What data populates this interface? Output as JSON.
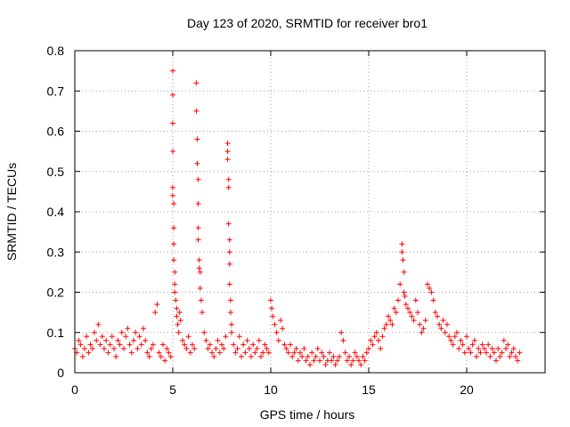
{
  "chart_data": {
    "type": "scatter",
    "title": "Day 123 of 2020, SRMTID for receiver bro1",
    "xlabel": "GPS time / hours",
    "ylabel": "SRMTID / TECUs",
    "xlim": [
      0,
      24
    ],
    "ylim": [
      0,
      0.8
    ],
    "xticks": [
      0,
      5,
      10,
      15,
      20
    ],
    "xtick_labels": [
      "0",
      "5",
      "10",
      "15",
      "20"
    ],
    "yticks": [
      0,
      0.1,
      0.2,
      0.3,
      0.4,
      0.5,
      0.6,
      0.7,
      0.8
    ],
    "ytick_labels": [
      "0",
      "0.1",
      "0.2",
      "0.3",
      "0.4",
      "0.5",
      "0.6",
      "0.7",
      "0.8"
    ],
    "grid": true,
    "marker": "+",
    "color": "#ff0000",
    "series": [
      {
        "name": "SRMTID",
        "x": [
          0.0,
          0.1,
          0.2,
          0.3,
          0.4,
          0.5,
          0.6,
          0.7,
          0.8,
          0.9,
          1.0,
          1.1,
          1.2,
          1.3,
          1.4,
          1.5,
          1.6,
          1.7,
          1.8,
          1.9,
          2.0,
          2.1,
          2.2,
          2.3,
          2.4,
          2.5,
          2.6,
          2.7,
          2.8,
          2.9,
          3.0,
          3.1,
          3.2,
          3.3,
          3.4,
          3.5,
          3.6,
          3.7,
          3.8,
          3.9,
          4.0,
          4.1,
          4.2,
          4.3,
          4.4,
          4.5,
          4.6,
          4.7,
          4.8,
          4.9,
          5.0,
          5.0,
          5.0,
          5.0,
          5.0,
          5.0,
          5.05,
          5.05,
          5.05,
          5.05,
          5.1,
          5.1,
          5.1,
          5.15,
          5.2,
          5.2,
          5.25,
          5.3,
          5.35,
          5.4,
          5.5,
          5.6,
          5.7,
          5.8,
          5.9,
          6.0,
          6.1,
          6.2,
          6.2,
          6.25,
          6.25,
          6.3,
          6.3,
          6.3,
          6.3,
          6.35,
          6.35,
          6.4,
          6.4,
          6.45,
          6.5,
          6.6,
          6.7,
          6.8,
          6.9,
          7.0,
          7.1,
          7.2,
          7.3,
          7.4,
          7.5,
          7.6,
          7.7,
          7.8,
          7.8,
          7.8,
          7.85,
          7.85,
          7.85,
          7.9,
          7.9,
          7.9,
          7.9,
          7.95,
          7.95,
          8.0,
          8.0,
          8.1,
          8.2,
          8.3,
          8.4,
          8.5,
          8.6,
          8.7,
          8.8,
          8.9,
          9.0,
          9.1,
          9.2,
          9.3,
          9.4,
          9.5,
          9.6,
          9.7,
          9.8,
          9.9,
          10.0,
          10.05,
          10.1,
          10.2,
          10.3,
          10.4,
          10.5,
          10.6,
          10.7,
          10.8,
          10.9,
          11.0,
          11.1,
          11.2,
          11.3,
          11.4,
          11.5,
          11.6,
          11.7,
          11.8,
          11.9,
          12.0,
          12.1,
          12.2,
          12.3,
          12.4,
          12.5,
          12.6,
          12.7,
          12.8,
          12.9,
          13.0,
          13.1,
          13.2,
          13.3,
          13.4,
          13.5,
          13.6,
          13.7,
          13.8,
          13.9,
          14.0,
          14.1,
          14.2,
          14.3,
          14.4,
          14.5,
          14.6,
          14.7,
          14.8,
          14.9,
          15.0,
          15.1,
          15.2,
          15.3,
          15.4,
          15.5,
          15.6,
          15.7,
          15.8,
          15.9,
          16.0,
          16.1,
          16.2,
          16.3,
          16.4,
          16.5,
          16.6,
          16.7,
          16.7,
          16.75,
          16.8,
          16.8,
          16.85,
          16.9,
          17.0,
          17.1,
          17.2,
          17.3,
          17.4,
          17.5,
          17.6,
          17.7,
          17.8,
          17.9,
          18.0,
          18.1,
          18.2,
          18.3,
          18.4,
          18.5,
          18.6,
          18.7,
          18.8,
          18.9,
          19.0,
          19.1,
          19.2,
          19.3,
          19.4,
          19.5,
          19.6,
          19.7,
          19.8,
          19.9,
          20.0,
          20.1,
          20.2,
          20.3,
          20.4,
          20.5,
          20.6,
          20.7,
          20.8,
          20.9,
          21.0,
          21.1,
          21.2,
          21.3,
          21.4,
          21.5,
          21.6,
          21.7,
          21.8,
          21.9,
          22.0,
          22.1,
          22.2,
          22.3,
          22.4,
          22.5,
          22.6,
          22.7
        ],
        "y": [
          0.06,
          0.05,
          0.08,
          0.07,
          0.04,
          0.06,
          0.09,
          0.05,
          0.07,
          0.06,
          0.1,
          0.08,
          0.12,
          0.07,
          0.09,
          0.06,
          0.08,
          0.05,
          0.07,
          0.09,
          0.06,
          0.04,
          0.08,
          0.07,
          0.1,
          0.06,
          0.09,
          0.11,
          0.07,
          0.05,
          0.08,
          0.1,
          0.06,
          0.09,
          0.07,
          0.11,
          0.08,
          0.05,
          0.04,
          0.06,
          0.07,
          0.15,
          0.17,
          0.05,
          0.04,
          0.07,
          0.03,
          0.06,
          0.05,
          0.04,
          0.75,
          0.69,
          0.62,
          0.55,
          0.46,
          0.44,
          0.42,
          0.36,
          0.32,
          0.28,
          0.25,
          0.22,
          0.2,
          0.18,
          0.16,
          0.14,
          0.12,
          0.1,
          0.15,
          0.13,
          0.08,
          0.07,
          0.06,
          0.09,
          0.05,
          0.07,
          0.06,
          0.72,
          0.65,
          0.58,
          0.52,
          0.48,
          0.42,
          0.36,
          0.33,
          0.28,
          0.26,
          0.25,
          0.21,
          0.18,
          0.15,
          0.1,
          0.08,
          0.06,
          0.07,
          0.05,
          0.04,
          0.06,
          0.08,
          0.05,
          0.07,
          0.06,
          0.09,
          0.57,
          0.55,
          0.53,
          0.48,
          0.46,
          0.37,
          0.33,
          0.3,
          0.27,
          0.22,
          0.18,
          0.15,
          0.12,
          0.1,
          0.07,
          0.05,
          0.06,
          0.09,
          0.04,
          0.07,
          0.05,
          0.08,
          0.06,
          0.04,
          0.07,
          0.05,
          0.06,
          0.08,
          0.04,
          0.05,
          0.07,
          0.06,
          0.05,
          0.18,
          0.16,
          0.14,
          0.12,
          0.1,
          0.08,
          0.13,
          0.11,
          0.07,
          0.06,
          0.05,
          0.07,
          0.04,
          0.05,
          0.06,
          0.03,
          0.05,
          0.04,
          0.06,
          0.03,
          0.04,
          0.02,
          0.05,
          0.03,
          0.04,
          0.06,
          0.03,
          0.05,
          0.04,
          0.02,
          0.03,
          0.05,
          0.03,
          0.04,
          0.02,
          0.03,
          0.04,
          0.1,
          0.08,
          0.05,
          0.03,
          0.04,
          0.02,
          0.03,
          0.05,
          0.04,
          0.03,
          0.02,
          0.04,
          0.03,
          0.05,
          0.06,
          0.08,
          0.07,
          0.09,
          0.1,
          0.08,
          0.06,
          0.09,
          0.11,
          0.12,
          0.14,
          0.13,
          0.12,
          0.16,
          0.15,
          0.18,
          0.22,
          0.32,
          0.3,
          0.28,
          0.25,
          0.2,
          0.19,
          0.17,
          0.16,
          0.15,
          0.14,
          0.13,
          0.18,
          0.15,
          0.12,
          0.1,
          0.11,
          0.13,
          0.22,
          0.21,
          0.2,
          0.18,
          0.15,
          0.14,
          0.12,
          0.11,
          0.13,
          0.1,
          0.12,
          0.09,
          0.08,
          0.07,
          0.09,
          0.1,
          0.06,
          0.08,
          0.07,
          0.05,
          0.09,
          0.06,
          0.05,
          0.07,
          0.08,
          0.04,
          0.06,
          0.05,
          0.07,
          0.06,
          0.05,
          0.07,
          0.04,
          0.06,
          0.05,
          0.03,
          0.06,
          0.04,
          0.05,
          0.08,
          0.06,
          0.07,
          0.04,
          0.05,
          0.06,
          0.04,
          0.03,
          0.05
        ]
      }
    ]
  }
}
